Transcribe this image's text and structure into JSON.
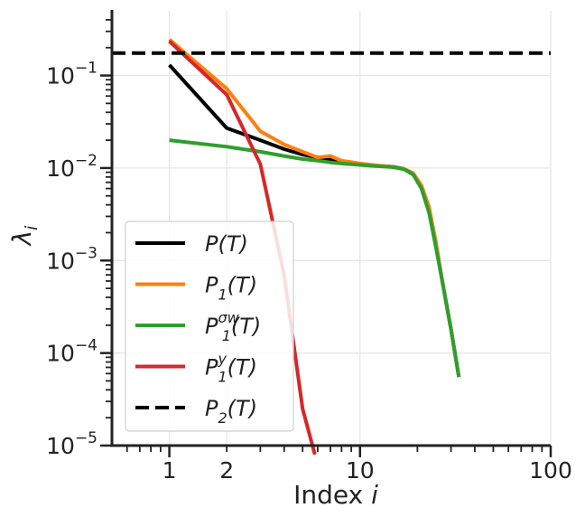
{
  "chart_data": {
    "type": "line",
    "title": "",
    "xlabel": "Index",
    "xlabel_var": "i",
    "ylabel": "λ",
    "ylabel_sub": "i",
    "xscale": "log",
    "yscale": "log",
    "xlim": [
      0.5,
      100
    ],
    "ylim": [
      1e-05,
      0.5
    ],
    "grid": true,
    "legend_position": "lower-left",
    "xticks": [
      {
        "value": 1,
        "label": "1"
      },
      {
        "value": 2,
        "label": "2"
      },
      {
        "value": 10,
        "label": "10"
      },
      {
        "value": 100,
        "label": "100"
      }
    ],
    "yticks": [
      {
        "value": 0.1,
        "base": "10",
        "exp": "−1"
      },
      {
        "value": 0.01,
        "base": "10",
        "exp": "−2"
      },
      {
        "value": 0.001,
        "base": "10",
        "exp": "−3"
      },
      {
        "value": 0.0001,
        "base": "10",
        "exp": "−4"
      },
      {
        "value": 1e-05,
        "base": "10",
        "exp": "−5"
      }
    ],
    "series": [
      {
        "name": "P(T)",
        "color": "#000000",
        "dash": "solid",
        "points": [
          [
            1,
            0.13
          ],
          [
            2,
            0.027
          ],
          [
            3,
            0.02
          ],
          [
            4,
            0.016
          ],
          [
            5,
            0.014
          ],
          [
            6,
            0.013
          ],
          [
            7,
            0.0125
          ],
          [
            8,
            0.0118
          ],
          [
            10,
            0.011
          ],
          [
            12,
            0.0106
          ],
          [
            15,
            0.0103
          ],
          [
            17,
            0.0098
          ],
          [
            19,
            0.0085
          ],
          [
            21,
            0.0062
          ],
          [
            23,
            0.0035
          ],
          [
            25,
            0.0015
          ],
          [
            27,
            0.0006
          ],
          [
            30,
            0.00018
          ],
          [
            33,
            5.5e-05
          ]
        ]
      },
      {
        "name": "P1(T)",
        "color": "#ff7f0e",
        "dash": "solid",
        "points": [
          [
            1,
            0.245
          ],
          [
            2,
            0.072
          ],
          [
            3,
            0.025
          ],
          [
            4,
            0.018
          ],
          [
            5,
            0.015
          ],
          [
            6,
            0.013
          ],
          [
            7,
            0.0135
          ],
          [
            8,
            0.012
          ],
          [
            10,
            0.0112
          ],
          [
            12,
            0.0107
          ],
          [
            15,
            0.0103
          ],
          [
            17,
            0.0098
          ],
          [
            19,
            0.0088
          ],
          [
            21,
            0.0065
          ],
          [
            23,
            0.0038
          ],
          [
            25,
            0.0016
          ],
          [
            27,
            0.0006
          ],
          [
            30,
            0.00018
          ],
          [
            33,
            5.5e-05
          ]
        ]
      },
      {
        "name": "P1^σw(T)",
        "color": "#2ca02c",
        "dash": "solid",
        "points": [
          [
            1,
            0.02
          ],
          [
            2,
            0.017
          ],
          [
            3,
            0.015
          ],
          [
            4,
            0.0135
          ],
          [
            5,
            0.0125
          ],
          [
            6,
            0.012
          ],
          [
            7,
            0.0115
          ],
          [
            8,
            0.0112
          ],
          [
            10,
            0.0108
          ],
          [
            12,
            0.0105
          ],
          [
            15,
            0.0102
          ],
          [
            17,
            0.0097
          ],
          [
            19,
            0.0085
          ],
          [
            21,
            0.006
          ],
          [
            23,
            0.0033
          ],
          [
            25,
            0.0014
          ],
          [
            27,
            0.0006
          ],
          [
            30,
            0.00018
          ],
          [
            33,
            5.5e-05
          ]
        ]
      },
      {
        "name": "P1^y(T)",
        "color": "#d62728",
        "dash": "solid",
        "points": [
          [
            1,
            0.235
          ],
          [
            2,
            0.062
          ],
          [
            3,
            0.011
          ],
          [
            4,
            0.0007
          ],
          [
            5,
            2.5e-05
          ],
          [
            5.8,
            8e-06
          ]
        ]
      },
      {
        "name": "P2(T)",
        "color": "#000000",
        "dash": "dashed",
        "points": [
          [
            0.5,
            0.175
          ],
          [
            100,
            0.175
          ]
        ]
      }
    ]
  },
  "legend": {
    "entries": [
      {
        "base": "P",
        "sub": "",
        "sup": "",
        "arg": "(T)"
      },
      {
        "base": "P",
        "sub": "1",
        "sup": "",
        "arg": "(T)"
      },
      {
        "base": "P",
        "sub": "1",
        "sup": "σw",
        "arg": "(T)"
      },
      {
        "base": "P",
        "sub": "1",
        "sup": "y",
        "arg": "(T)"
      },
      {
        "base": "P",
        "sub": "2",
        "sup": "",
        "arg": "(T)"
      }
    ]
  }
}
